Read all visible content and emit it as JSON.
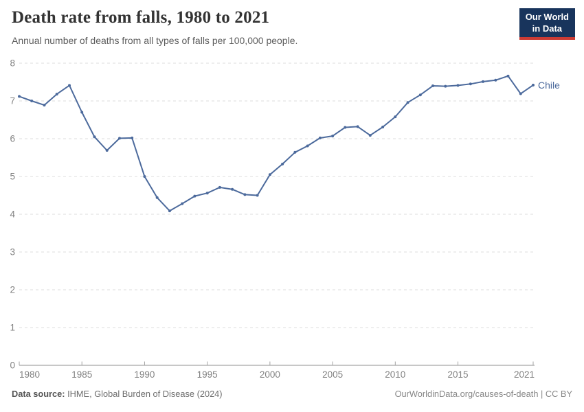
{
  "chart_data": {
    "type": "line",
    "title": "Death rate from falls, 1980 to 2021",
    "subtitle": "Annual number of deaths from all types of falls per 100,000 people.",
    "x": [
      1980,
      1981,
      1982,
      1983,
      1984,
      1985,
      1986,
      1987,
      1988,
      1989,
      1990,
      1991,
      1992,
      1993,
      1994,
      1995,
      1996,
      1997,
      1998,
      1999,
      2000,
      2001,
      2002,
      2003,
      2004,
      2005,
      2006,
      2007,
      2008,
      2009,
      2010,
      2011,
      2012,
      2013,
      2014,
      2015,
      2016,
      2017,
      2018,
      2019,
      2020,
      2021
    ],
    "series": [
      {
        "name": "Chile",
        "color": "#4C6A9C",
        "values": [
          7.12,
          7.0,
          6.89,
          7.18,
          7.41,
          6.7,
          6.05,
          5.69,
          6.01,
          6.02,
          5.0,
          4.44,
          4.09,
          4.28,
          4.48,
          4.56,
          4.71,
          4.66,
          4.52,
          4.5,
          5.05,
          5.33,
          5.64,
          5.81,
          6.02,
          6.07,
          6.3,
          6.32,
          6.09,
          6.31,
          6.58,
          6.96,
          7.16,
          7.4,
          7.39,
          7.41,
          7.45,
          7.51,
          7.55,
          7.66,
          7.19,
          7.42
        ]
      }
    ],
    "xlabel": "",
    "ylabel": "",
    "ylim": [
      0,
      8
    ],
    "yticks": [
      0,
      1,
      2,
      3,
      4,
      5,
      6,
      7,
      8
    ],
    "xticks": [
      1980,
      1985,
      1990,
      1995,
      2000,
      2005,
      2010,
      2015,
      2021
    ],
    "grid": "horizontal-dashed",
    "legend_position": "end-of-line",
    "colors": {
      "line": "#4C6A9C",
      "gridline": "#dcdcdc",
      "axis": "#8f8f8f",
      "tick": "#a3a3a3",
      "tick_label": "#818181"
    }
  },
  "logo": {
    "line1": "Our World",
    "line2": "in Data"
  },
  "footer": {
    "source_label": "Data source:",
    "source_text": " IHME, Global Burden of Disease (2024)",
    "credit": "OurWorldinData.org/causes-of-death | CC BY"
  }
}
